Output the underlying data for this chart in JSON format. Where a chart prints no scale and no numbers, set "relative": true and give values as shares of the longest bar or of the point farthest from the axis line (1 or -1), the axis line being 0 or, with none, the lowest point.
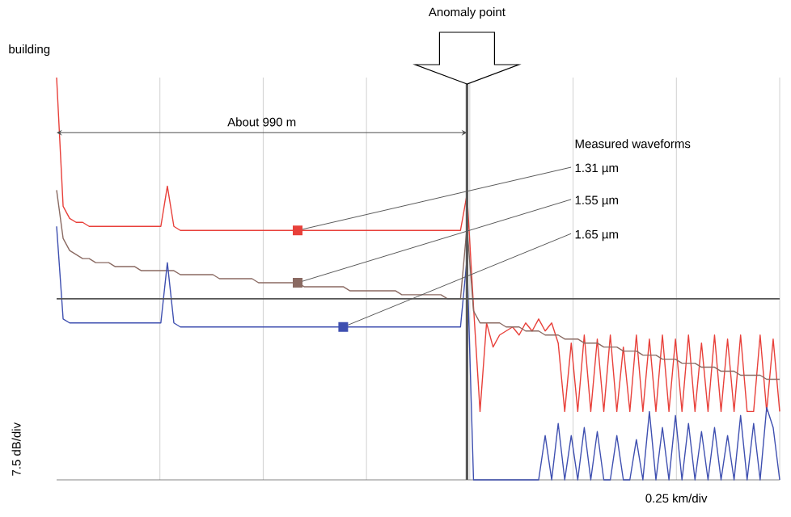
{
  "chart_data": {
    "type": "line",
    "relative": true,
    "xlabel": "0.25 km/div",
    "ylabel": "7.5 dB/div",
    "categories": [
      null,
      null,
      null,
      null,
      null,
      null,
      null,
      null,
      null,
      null,
      null,
      null,
      null,
      null,
      null,
      null,
      null,
      null,
      null,
      null,
      null,
      null,
      null,
      null,
      null,
      null,
      null,
      null,
      null,
      null,
      null,
      null,
      null,
      null,
      null,
      null,
      null,
      null,
      null,
      null,
      null,
      null,
      null,
      null,
      null,
      null,
      null,
      null,
      null,
      null,
      null,
      null,
      null,
      null,
      null,
      null,
      null,
      null,
      null,
      null,
      null,
      null,
      null,
      null,
      null,
      null,
      null,
      null,
      null,
      null,
      null,
      null,
      null,
      null,
      null,
      null,
      null,
      null,
      null,
      null,
      null,
      null,
      null,
      null,
      null,
      null,
      null,
      null,
      null,
      null,
      null,
      null,
      null,
      null,
      null,
      null,
      null,
      null,
      null,
      null,
      null,
      null,
      null,
      null,
      null,
      null,
      null,
      null,
      null,
      null,
      null,
      null
    ],
    "grid": true,
    "legend": false,
    "marker": "none",
    "line_style": "solid",
    "annotations": [
      "building",
      "About 990 m",
      "Measured waveforms",
      "Anomaly point"
    ],
    "ref_lines": [
      {
        "axis": "y",
        "value": 0.45,
        "color": "#555555"
      }
    ],
    "series": [
      {
        "name": "1.31 µm",
        "color": "#e8403a",
        "values": [
          1.0,
          0.68,
          0.65,
          0.64,
          0.64,
          0.63,
          0.63,
          0.63,
          0.63,
          0.63,
          0.63,
          0.63,
          0.63,
          0.63,
          0.63,
          0.63,
          0.63,
          0.73,
          0.63,
          0.62,
          0.62,
          0.62,
          0.62,
          0.62,
          0.62,
          0.62,
          0.62,
          0.62,
          0.62,
          0.62,
          0.62,
          0.62,
          0.62,
          0.62,
          0.62,
          0.62,
          0.62,
          0.62,
          0.62,
          0.62,
          0.62,
          0.62,
          0.62,
          0.62,
          0.62,
          0.62,
          0.62,
          0.62,
          0.62,
          0.62,
          0.62,
          0.62,
          0.62,
          0.62,
          0.62,
          0.62,
          0.62,
          0.62,
          0.62,
          0.62,
          0.62,
          0.62,
          0.62,
          0.71,
          0.43,
          0.17,
          0.39,
          0.33,
          0.36,
          0.37,
          0.38,
          0.36,
          0.39,
          0.37,
          0.4,
          0.37,
          0.39,
          0.34,
          0.17,
          0.34,
          0.17,
          0.36,
          0.17,
          0.35,
          0.17,
          0.36,
          0.17,
          0.33,
          0.17,
          0.36,
          0.17,
          0.35,
          0.17,
          0.36,
          0.17,
          0.35,
          0.17,
          0.36,
          0.17,
          0.34,
          0.17,
          0.36,
          0.17,
          0.35,
          0.17,
          0.36,
          0.17,
          0.17,
          0.36,
          0.17,
          0.35,
          0.17
        ]
      },
      {
        "name": "1.55 µm",
        "color": "#8a6a62",
        "values": [
          0.72,
          0.6,
          0.57,
          0.56,
          0.55,
          0.55,
          0.54,
          0.54,
          0.54,
          0.53,
          0.53,
          0.53,
          0.53,
          0.52,
          0.52,
          0.52,
          0.52,
          0.52,
          0.52,
          0.51,
          0.51,
          0.51,
          0.51,
          0.51,
          0.51,
          0.5,
          0.5,
          0.5,
          0.5,
          0.5,
          0.5,
          0.49,
          0.49,
          0.49,
          0.49,
          0.49,
          0.49,
          0.49,
          0.48,
          0.48,
          0.48,
          0.48,
          0.48,
          0.48,
          0.48,
          0.47,
          0.47,
          0.47,
          0.47,
          0.47,
          0.47,
          0.47,
          0.47,
          0.46,
          0.46,
          0.46,
          0.46,
          0.46,
          0.46,
          0.46,
          0.45,
          0.45,
          0.45,
          0.63,
          0.42,
          0.39,
          0.39,
          0.39,
          0.39,
          0.38,
          0.38,
          0.38,
          0.37,
          0.37,
          0.37,
          0.36,
          0.36,
          0.36,
          0.35,
          0.35,
          0.35,
          0.34,
          0.34,
          0.34,
          0.33,
          0.33,
          0.33,
          0.32,
          0.32,
          0.32,
          0.31,
          0.31,
          0.31,
          0.3,
          0.3,
          0.3,
          0.29,
          0.29,
          0.29,
          0.28,
          0.28,
          0.28,
          0.27,
          0.27,
          0.27,
          0.26,
          0.26,
          0.26,
          0.26,
          0.25,
          0.25,
          0.25
        ]
      },
      {
        "name": "1.65 µm",
        "color": "#3e4fb0",
        "values": [
          0.63,
          0.4,
          0.39,
          0.39,
          0.39,
          0.39,
          0.39,
          0.39,
          0.39,
          0.39,
          0.39,
          0.39,
          0.39,
          0.39,
          0.39,
          0.39,
          0.39,
          0.54,
          0.39,
          0.38,
          0.38,
          0.38,
          0.38,
          0.38,
          0.38,
          0.38,
          0.38,
          0.38,
          0.38,
          0.38,
          0.38,
          0.38,
          0.38,
          0.38,
          0.38,
          0.38,
          0.38,
          0.38,
          0.38,
          0.38,
          0.38,
          0.38,
          0.38,
          0.38,
          0.38,
          0.38,
          0.38,
          0.38,
          0.38,
          0.38,
          0.38,
          0.38,
          0.38,
          0.38,
          0.38,
          0.38,
          0.38,
          0.38,
          0.38,
          0.38,
          0.38,
          0.38,
          0.38,
          0.55,
          0,
          0,
          0,
          0,
          0,
          0,
          0,
          0,
          0,
          0,
          0,
          0.11,
          0,
          0.14,
          0,
          0.11,
          0,
          0.13,
          0,
          0.12,
          0,
          0,
          0.11,
          0,
          0,
          0.1,
          0,
          0.17,
          0,
          0.13,
          0,
          0.16,
          0,
          0.14,
          0,
          0.12,
          0,
          0.13,
          0,
          0.11,
          0,
          0.16,
          0,
          0.14,
          0,
          0.18,
          0.13,
          0
        ]
      }
    ]
  }
}
